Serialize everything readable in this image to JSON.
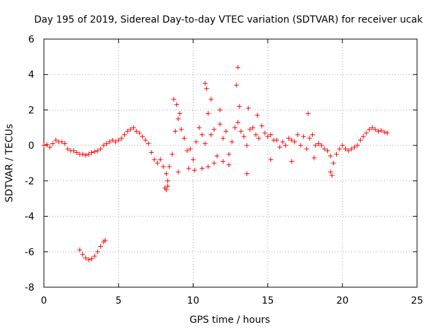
{
  "chart_data": {
    "type": "scatter",
    "title": "Day 195 of 2019, Sidereal Day-to-day VTEC variation (SDTVAR) for receiver ucak",
    "xlabel": "GPS time / hours",
    "ylabel": "SDTVAR / TECUs",
    "xlim": [
      0,
      25
    ],
    "ylim": [
      -8,
      6
    ],
    "xticks": [
      0,
      5,
      10,
      15,
      20,
      25
    ],
    "yticks": [
      -8,
      -6,
      -4,
      -2,
      0,
      2,
      4,
      6
    ],
    "grid": true,
    "marker": "+",
    "color": "#ff0000",
    "series": [
      {
        "name": "SDTVAR",
        "x": [
          0.0,
          0.2,
          0.4,
          0.6,
          0.8,
          1.0,
          1.2,
          1.4,
          1.6,
          1.8,
          2.0,
          2.2,
          2.4,
          2.6,
          2.8,
          3.0,
          3.2,
          3.4,
          3.6,
          3.8,
          4.0,
          4.2,
          4.4,
          4.6,
          4.8,
          5.0,
          5.2,
          5.4,
          5.6,
          5.8,
          6.0,
          6.2,
          6.4,
          6.6,
          6.8,
          7.0,
          7.2,
          7.4,
          7.6,
          7.8,
          8.0,
          8.2,
          8.3,
          8.4,
          8.6,
          8.8,
          9.0,
          9.2,
          9.4,
          9.6,
          9.8,
          10.0,
          10.2,
          10.4,
          10.6,
          10.8,
          11.0,
          11.2,
          11.4,
          11.6,
          11.8,
          12.0,
          12.2,
          12.4,
          12.6,
          12.8,
          13.0,
          13.2,
          13.4,
          13.6,
          13.8,
          14.0,
          14.2,
          14.4,
          14.6,
          14.8,
          15.0,
          15.2,
          15.4,
          15.6,
          15.8,
          16.0,
          16.2,
          16.4,
          16.6,
          16.8,
          17.0,
          17.2,
          17.4,
          17.6,
          17.8,
          18.0,
          18.2,
          18.4,
          18.6,
          18.8,
          19.0,
          19.2,
          19.4,
          19.6,
          19.8,
          20.0,
          20.2,
          20.4,
          20.6,
          20.8,
          21.0,
          21.2,
          21.4,
          21.6,
          21.8,
          22.0,
          22.2,
          22.4,
          22.6,
          22.8,
          23.0,
          2.4,
          2.6,
          2.8,
          3.0,
          3.2,
          3.4,
          3.6,
          3.8,
          4.0,
          4.1,
          8.7,
          8.9,
          9.1,
          10.8,
          10.9,
          11.2,
          12.9,
          13.0,
          13.1,
          8.1,
          8.2,
          8.3,
          9.7,
          10.1,
          11.0,
          11.4,
          12.0,
          13.6,
          17.7,
          19.3,
          19.2,
          15.2,
          16.6,
          18.1,
          9.0,
          10.6,
          12.4,
          14.3,
          13.7,
          11.8
        ],
        "y": [
          0.0,
          0.05,
          -0.1,
          0.1,
          0.3,
          0.2,
          0.2,
          0.1,
          -0.2,
          -0.3,
          -0.3,
          -0.4,
          -0.5,
          -0.5,
          -0.55,
          -0.5,
          -0.4,
          -0.35,
          -0.3,
          -0.2,
          0.0,
          0.1,
          0.2,
          0.3,
          0.2,
          0.3,
          0.4,
          0.6,
          0.8,
          0.9,
          1.0,
          0.8,
          0.7,
          0.5,
          0.3,
          0.1,
          -0.4,
          -0.8,
          -1.0,
          -0.8,
          -1.2,
          -1.6,
          -2.0,
          -1.2,
          -0.5,
          0.8,
          1.5,
          0.9,
          0.4,
          -0.3,
          -0.2,
          -0.8,
          0.2,
          1.0,
          0.6,
          0.1,
          1.8,
          0.6,
          0.9,
          -0.6,
          1.2,
          0.4,
          0.8,
          -0.5,
          0.2,
          1.0,
          1.3,
          0.8,
          0.5,
          0.0,
          0.9,
          1.0,
          0.6,
          0.4,
          1.1,
          0.7,
          0.5,
          0.6,
          0.3,
          0.3,
          -0.1,
          0.2,
          0.0,
          0.4,
          0.3,
          0.2,
          0.6,
          0.0,
          0.5,
          -0.2,
          0.4,
          0.6,
          0.0,
          0.1,
          0.0,
          -0.2,
          -0.3,
          -0.6,
          -1.0,
          -0.5,
          -0.2,
          0.0,
          -0.2,
          -0.3,
          -0.2,
          -0.1,
          0.0,
          0.3,
          0.5,
          0.7,
          0.9,
          1.0,
          0.9,
          0.8,
          0.85,
          0.75,
          0.7,
          -5.9,
          -6.15,
          -6.35,
          -6.45,
          -6.4,
          -6.25,
          -6.0,
          -5.7,
          -5.45,
          -5.35,
          2.6,
          2.3,
          1.8,
          3.5,
          3.2,
          2.6,
          3.4,
          4.4,
          2.2,
          -2.4,
          -2.5,
          -2.3,
          -1.3,
          -1.4,
          -1.2,
          -1.0,
          -0.9,
          -1.6,
          1.8,
          -1.7,
          -1.5,
          -0.8,
          -0.9,
          -0.7,
          -1.5,
          -1.3,
          -1.1,
          1.7,
          2.1,
          2.0
        ]
      }
    ]
  }
}
